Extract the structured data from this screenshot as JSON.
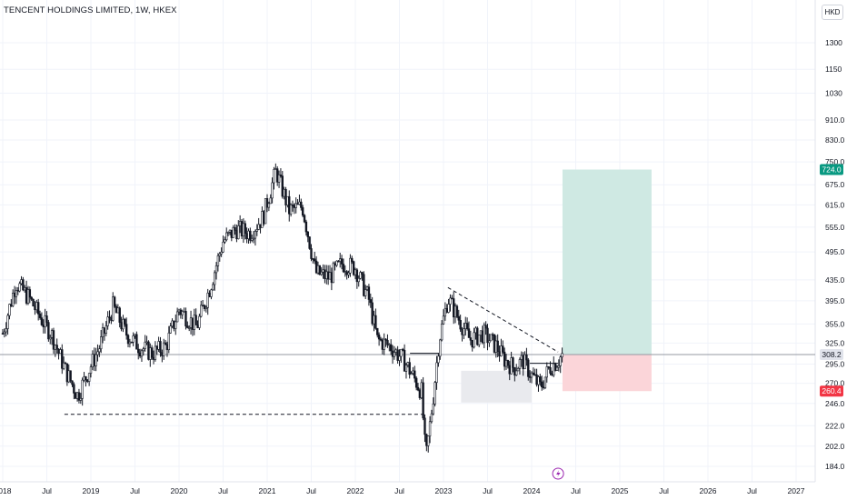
{
  "header": {
    "title": "TENCENT HOLDINGS LIMITED, 1W, HKEX"
  },
  "toolbar": {
    "currency_label": "HKD"
  },
  "chart_data": {
    "type": "candlestick",
    "title": "TENCENT HOLDINGS LIMITED, 1W, HKEX",
    "currency": "HKD",
    "y_scale": "log",
    "ylim": [
      178,
      1420
    ],
    "y_ticks": [
      "1300",
      "1150",
      "1030",
      "910.0",
      "830.0",
      "750.0",
      "675.0",
      "615.0",
      "555.0",
      "495.0",
      "435.0",
      "395.0",
      "355.0",
      "325.0",
      "295.0",
      "270.0",
      "246.0",
      "222.0",
      "202.0",
      "184.0"
    ],
    "x_ticks": [
      "2018",
      "Jul",
      "2019",
      "Jul",
      "2020",
      "Jul",
      "2021",
      "Jul",
      "2022",
      "Jul",
      "2023",
      "Jul",
      "2024",
      "Jul",
      "2025",
      "Jul",
      "2026",
      "Jul",
      "2027"
    ],
    "price_path": [
      [
        2018.0,
        340
      ],
      [
        2018.15,
        430
      ],
      [
        2018.3,
        400
      ],
      [
        2018.45,
        360
      ],
      [
        2018.55,
        340
      ],
      [
        2018.7,
        290
      ],
      [
        2018.85,
        255
      ],
      [
        2018.95,
        280
      ],
      [
        2019.1,
        320
      ],
      [
        2019.25,
        385
      ],
      [
        2019.4,
        340
      ],
      [
        2019.55,
        320
      ],
      [
        2019.7,
        310
      ],
      [
        2019.85,
        320
      ],
      [
        2020.0,
        380
      ],
      [
        2020.2,
        350
      ],
      [
        2020.35,
        420
      ],
      [
        2020.5,
        520
      ],
      [
        2020.65,
        550
      ],
      [
        2020.8,
        540
      ],
      [
        2020.95,
        580
      ],
      [
        2021.1,
        720
      ],
      [
        2021.25,
        600
      ],
      [
        2021.4,
        610
      ],
      [
        2021.55,
        450
      ],
      [
        2021.7,
        440
      ],
      [
        2021.85,
        470
      ],
      [
        2022.0,
        460
      ],
      [
        2022.15,
        400
      ],
      [
        2022.25,
        330
      ],
      [
        2022.4,
        320
      ],
      [
        2022.55,
        300
      ],
      [
        2022.65,
        280
      ],
      [
        2022.75,
        260
      ],
      [
        2022.8,
        190
      ],
      [
        2022.88,
        250
      ],
      [
        2022.95,
        330
      ],
      [
        2023.05,
        400
      ],
      [
        2023.15,
        370
      ],
      [
        2023.3,
        330
      ],
      [
        2023.45,
        340
      ],
      [
        2023.6,
        320
      ],
      [
        2023.7,
        300
      ],
      [
        2023.8,
        290
      ],
      [
        2023.9,
        300
      ],
      [
        2024.0,
        280
      ],
      [
        2024.1,
        265
      ],
      [
        2024.2,
        290
      ],
      [
        2024.3,
        300
      ],
      [
        2024.35,
        308.2
      ]
    ],
    "last_price": "308.2",
    "annotations": {
      "support_line": {
        "price": 246.0,
        "from": 2018.7,
        "to": 2022.8
      },
      "neckline": {
        "price": 310,
        "from": 2022.62,
        "to": 2022.95
      },
      "descending_trendline": {
        "from": [
          2023.05,
          420
        ],
        "to": [
          2024.3,
          312
        ]
      },
      "range_box": {
        "from": 2023.2,
        "to": 2024.0,
        "high": 286,
        "low": 247
      },
      "position": {
        "start": 2024.35,
        "end": 2025.36,
        "entry": 308.2,
        "target": 724.0,
        "stop": 260.4
      }
    },
    "labels": {
      "target": "724.0",
      "current": "308.2",
      "stop": "260.4"
    },
    "colors": {
      "up": "#089981",
      "down": "#f23645",
      "candle": "#131722",
      "target_zone": "#cfe9e3",
      "stop_zone": "#fbd5d9",
      "box": "#e9eaee",
      "event_marker": "#9c27b0"
    },
    "event_marker": {
      "time": 2024.3,
      "icon": "lightning-icon"
    }
  }
}
